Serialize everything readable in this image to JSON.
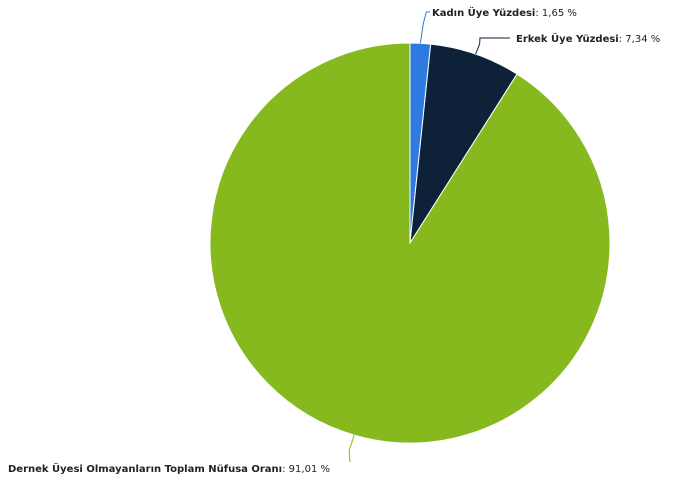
{
  "chart_data": {
    "type": "pie",
    "slices": [
      {
        "name": "Kadın Üye Yüzdesi",
        "value": 1.65,
        "value_label": "1,65 %",
        "color": "#2d7be0"
      },
      {
        "name": "Erkek Üye Yüzdesi",
        "value": 7.34,
        "value_label": "7,34 %",
        "color": "#0d2238"
      },
      {
        "name": "Dernek Üyesi Olmayanların Toplam Nüfusa Oranı",
        "value": 91.01,
        "value_label": "91,01 %",
        "color": "#86b91e"
      }
    ],
    "start_angle": "12 o'clock, clockwise",
    "legend": "none",
    "data_labels": "outside with connector lines"
  }
}
